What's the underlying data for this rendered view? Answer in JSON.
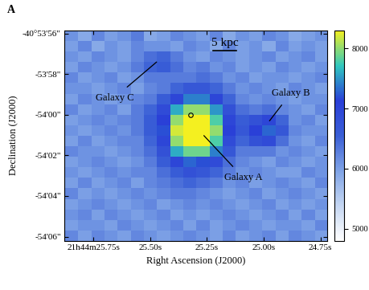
{
  "chart_data": {
    "type": "heatmap",
    "panel_label": "A",
    "xlabel": "Right Ascension (J2000)",
    "ylabel": "Declination (J2000)",
    "xlim": [
      25.877,
      24.72
    ],
    "ylim": [
      -147246.2,
      -147235.85
    ],
    "xticks": [
      {
        "value": 25.75,
        "label": "21h44m25.75s"
      },
      {
        "value": 25.5,
        "label": "25.50s"
      },
      {
        "value": 25.25,
        "label": "25.25s"
      },
      {
        "value": 25.0,
        "label": "25.00s"
      },
      {
        "value": 24.75,
        "label": "24.75s"
      }
    ],
    "yticks": [
      {
        "value": -147236,
        "label": "-40°53'56\""
      },
      {
        "value": -147238,
        "label": "-53'58\""
      },
      {
        "value": -147240,
        "label": "-54'00\""
      },
      {
        "value": -147242,
        "label": "-54'02\""
      },
      {
        "value": -147244,
        "label": "-54'04\""
      },
      {
        "value": -147246,
        "label": "-54'06\""
      }
    ],
    "colorbar_range": [
      4800,
      8300
    ],
    "colorbar_ticks": [
      5000,
      6000,
      7000,
      8000
    ],
    "annotations": [
      "Galaxy A",
      "Galaxy B",
      "Galaxy C"
    ],
    "scale_label": "5 kpc",
    "cells": [
      [
        6100,
        5900,
        6200,
        6000,
        6100,
        6300,
        5900,
        6000,
        6200,
        6100,
        6000,
        6200,
        5900,
        6100,
        6000,
        6200,
        6100,
        5900,
        6000,
        6100
      ],
      [
        6000,
        6200,
        5900,
        6100,
        6000,
        6200,
        6100,
        6100,
        6000,
        6200,
        6100,
        5900,
        6200,
        6000,
        6100,
        5900,
        6200,
        6000,
        6100,
        6000
      ],
      [
        6100,
        6000,
        6200,
        6100,
        6000,
        6200,
        6400,
        6500,
        6300,
        6100,
        6000,
        6200,
        6100,
        6000,
        6100,
        6200,
        6000,
        6100,
        6200,
        6000
      ],
      [
        6000,
        6200,
        6100,
        6000,
        6100,
        6300,
        6500,
        6600,
        6400,
        6200,
        6300,
        6100,
        6200,
        6000,
        6100,
        6000,
        6200,
        6100,
        6000,
        6100
      ],
      [
        6200,
        6000,
        6100,
        6200,
        6000,
        6100,
        6300,
        6300,
        6300,
        6300,
        6400,
        6300,
        6100,
        6200,
        6000,
        6100,
        6100,
        6000,
        6100,
        6200
      ],
      [
        6100,
        6100,
        6000,
        6100,
        6200,
        6000,
        6200,
        6300,
        6500,
        6700,
        6700,
        6500,
        6300,
        6100,
        6200,
        6100,
        6000,
        6200,
        6100,
        6000
      ],
      [
        6000,
        6200,
        6100,
        6000,
        6100,
        6200,
        6300,
        6600,
        7000,
        7400,
        7400,
        7000,
        6500,
        6200,
        6100,
        6200,
        6100,
        6000,
        6100,
        6100
      ],
      [
        6200,
        6000,
        6100,
        6200,
        6000,
        6300,
        6500,
        6900,
        7600,
        8000,
        8000,
        7500,
        6800,
        6400,
        6300,
        6400,
        6200,
        6100,
        6000,
        6200
      ],
      [
        6000,
        6100,
        6200,
        6100,
        6200,
        6300,
        6600,
        7100,
        8000,
        8300,
        8300,
        7800,
        7000,
        6600,
        6800,
        7000,
        6500,
        6100,
        6200,
        6000
      ],
      [
        6100,
        6000,
        6100,
        6200,
        6100,
        6300,
        6600,
        7200,
        8200,
        8300,
        8300,
        8000,
        7100,
        6700,
        7100,
        7300,
        6700,
        6200,
        6100,
        6100
      ],
      [
        6000,
        6200,
        6000,
        6100,
        6200,
        6200,
        6500,
        7000,
        8000,
        8300,
        8300,
        7800,
        6900,
        6500,
        6800,
        6900,
        6400,
        6100,
        6000,
        6200
      ],
      [
        6200,
        6100,
        6100,
        6000,
        6100,
        6200,
        6400,
        6800,
        7600,
        7900,
        7900,
        7400,
        6700,
        6300,
        6300,
        6300,
        6100,
        6200,
        6100,
        6000
      ],
      [
        6000,
        6100,
        6200,
        6100,
        6000,
        6100,
        6300,
        6600,
        7000,
        7300,
        7200,
        6900,
        6400,
        6200,
        6100,
        6000,
        6200,
        6100,
        6000,
        6100
      ],
      [
        6100,
        6000,
        6100,
        6200,
        6100,
        6200,
        6200,
        6400,
        6600,
        6800,
        6700,
        6500,
        6300,
        6100,
        6200,
        6100,
        6000,
        6000,
        6200,
        6100
      ],
      [
        6000,
        6200,
        6000,
        6100,
        6200,
        6000,
        6200,
        6300,
        6400,
        6500,
        6400,
        6300,
        6100,
        6200,
        6000,
        6100,
        6200,
        6100,
        6000,
        6200
      ],
      [
        6200,
        6000,
        6100,
        6000,
        6100,
        6200,
        6100,
        6200,
        6300,
        6300,
        6200,
        6100,
        6000,
        6100,
        6200,
        6000,
        6100,
        6200,
        6100,
        6000
      ],
      [
        6000,
        6100,
        6200,
        6100,
        6000,
        6100,
        6200,
        6000,
        6100,
        6200,
        6100,
        6200,
        6100,
        6000,
        6100,
        6200,
        6000,
        6100,
        6000,
        6100
      ],
      [
        6100,
        6200,
        6000,
        6200,
        6100,
        6000,
        6100,
        6200,
        6000,
        6100,
        6000,
        6100,
        6200,
        6100,
        6000,
        6100,
        6200,
        6000,
        6200,
        6000
      ],
      [
        6000,
        6100,
        6100,
        6000,
        6200,
        6100,
        6000,
        6100,
        6200,
        6000,
        6200,
        6000,
        6100,
        6200,
        6100,
        6000,
        6100,
        6100,
        6000,
        6200
      ],
      [
        6200,
        6000,
        6200,
        6100,
        6000,
        6200,
        6100,
        6000,
        6100,
        6200,
        6100,
        6000,
        6200,
        6000,
        6100,
        6200,
        6000,
        6200,
        6100,
        6000
      ]
    ]
  }
}
